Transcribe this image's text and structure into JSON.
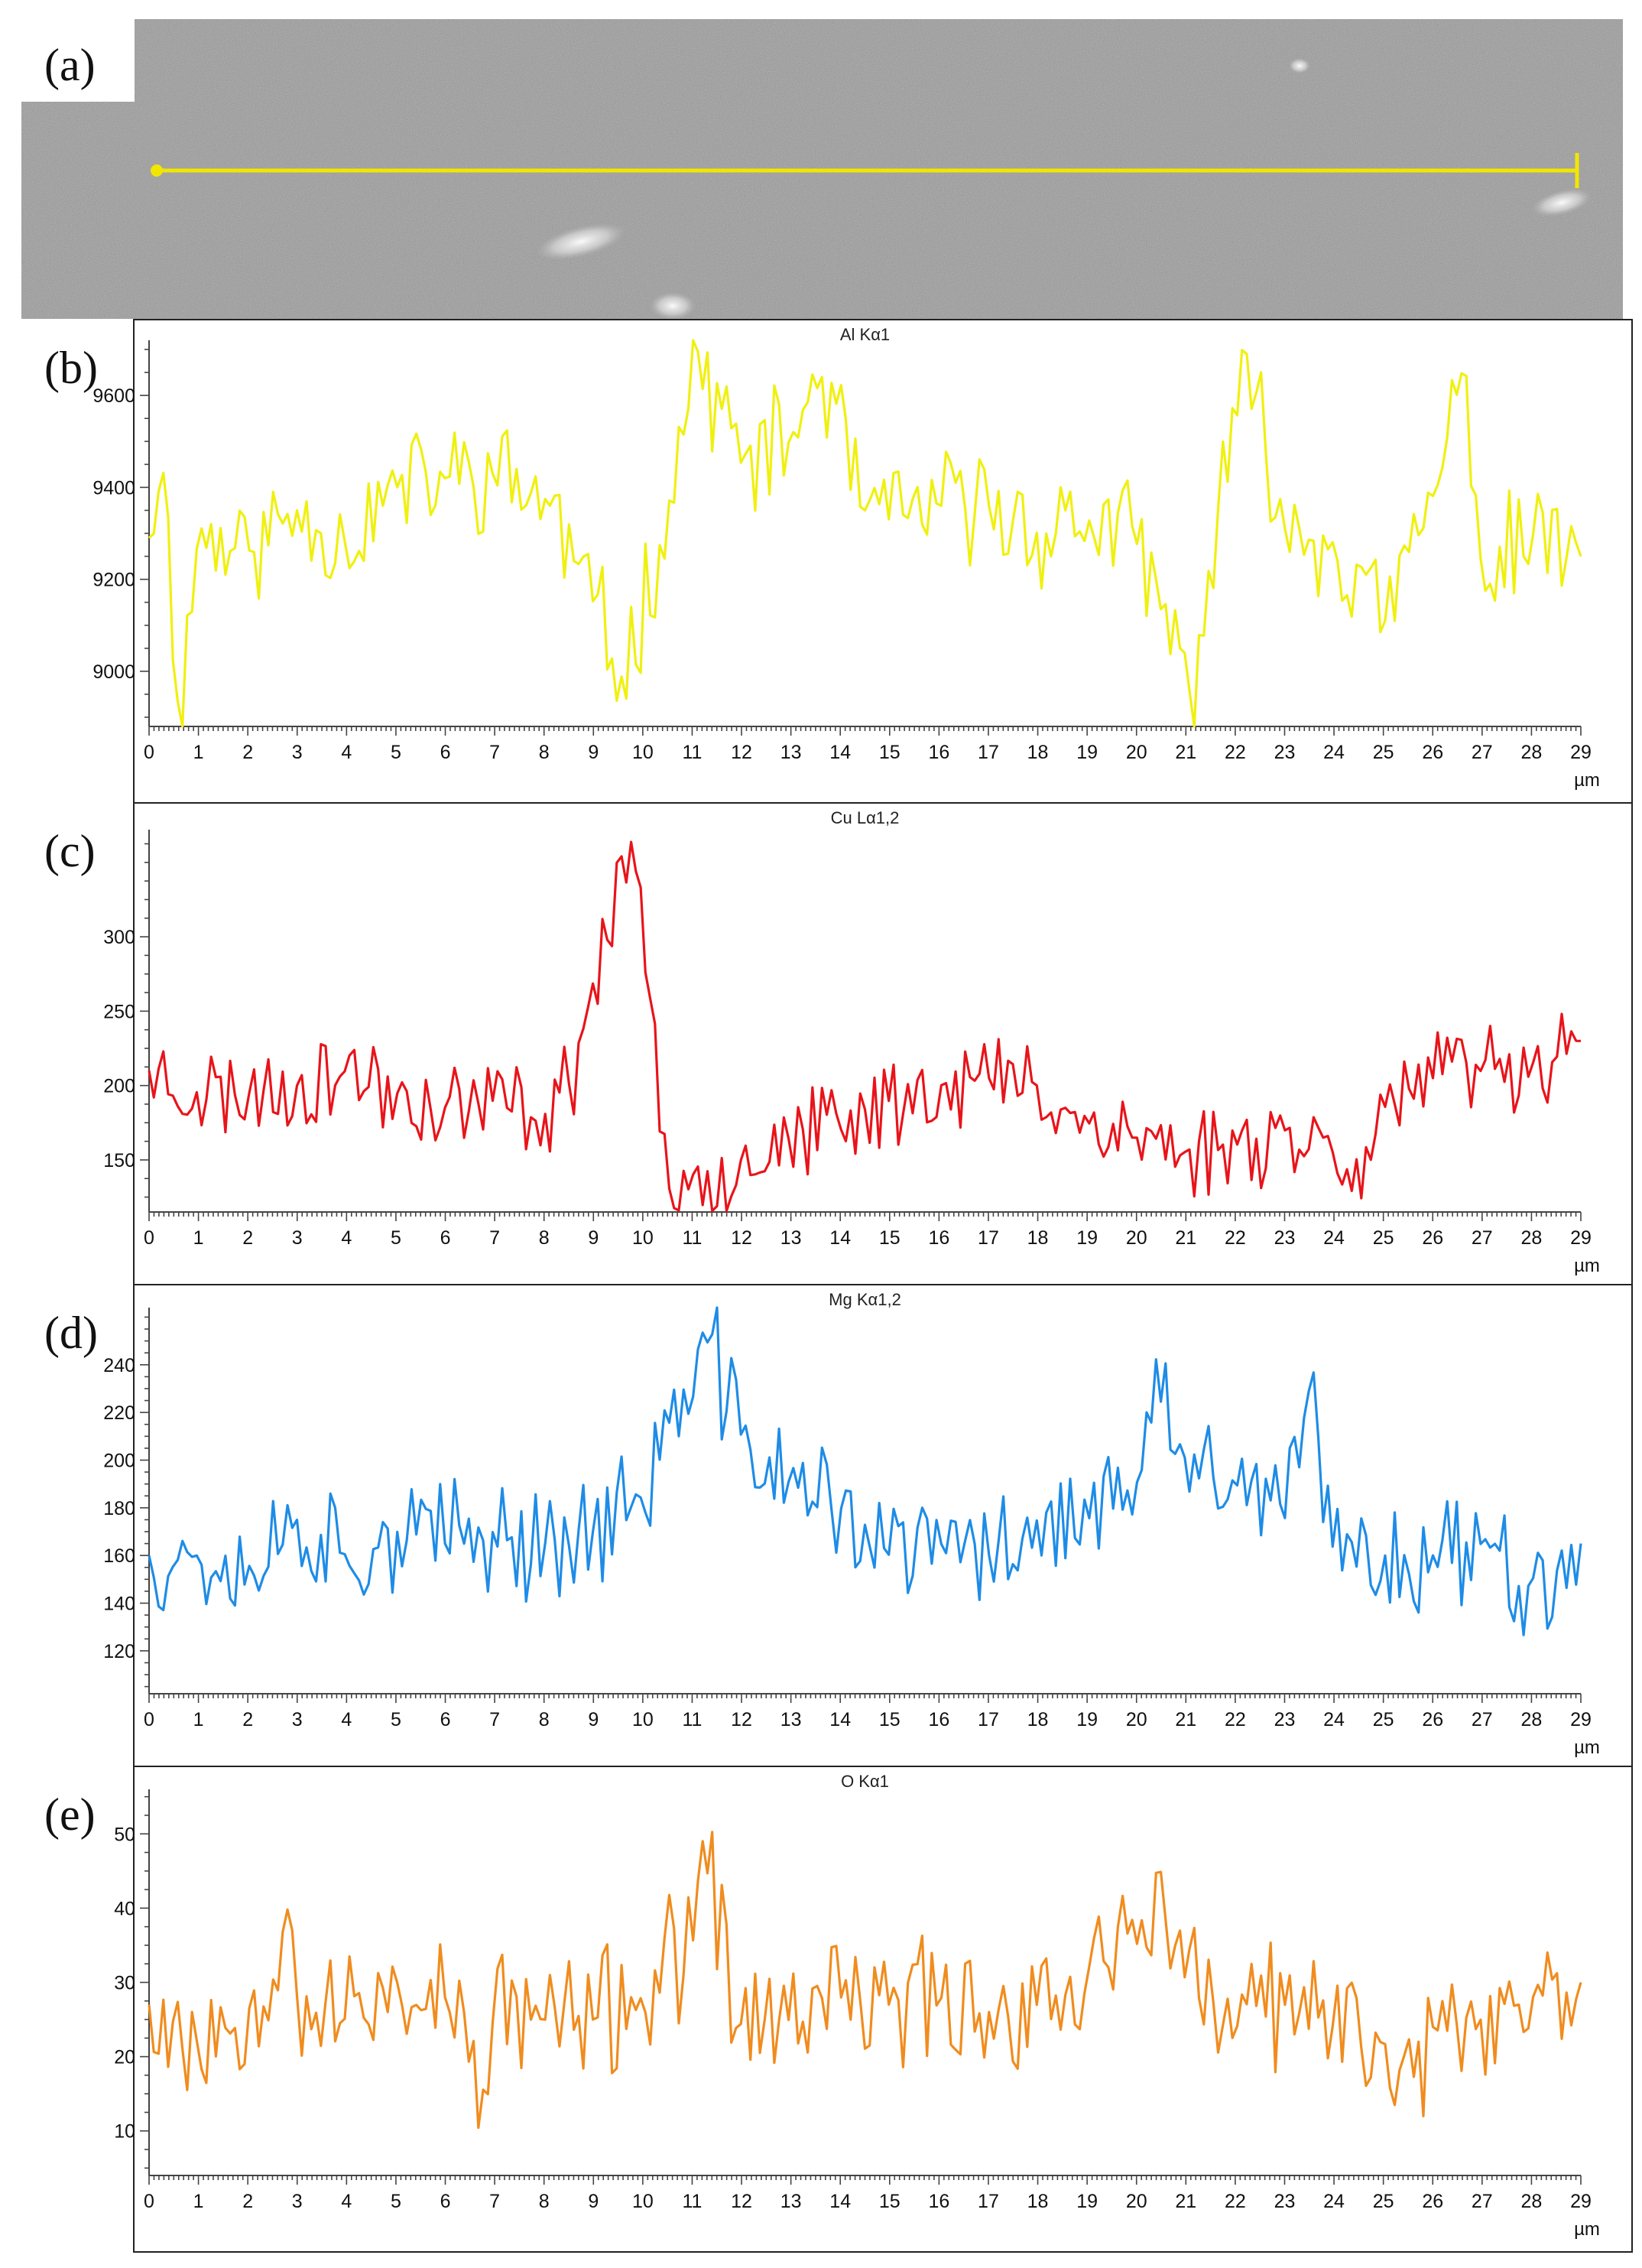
{
  "sem_image": {
    "label": "(a)",
    "line_color": "#f2e600"
  },
  "chart_data": [
    {
      "label": "(b)",
      "type": "line",
      "title": "Al Kα1",
      "color": "#f0f010",
      "xlabel": "µm",
      "xlim": [
        0,
        29
      ],
      "ylim": [
        8880,
        9720
      ],
      "yticks": [
        9000,
        9200,
        9400,
        9600
      ],
      "x_anchors": [
        0,
        0.25,
        0.6,
        1,
        2,
        3,
        4,
        5,
        6,
        7,
        8,
        9,
        9.6,
        10.5,
        11.1,
        12,
        13,
        13.6,
        14.5,
        15,
        16,
        17,
        18,
        19,
        20,
        21.1,
        22,
        22.4,
        23,
        24,
        25,
        26,
        26.7,
        27,
        28,
        29
      ],
      "y_anchors": [
        9290,
        9500,
        8900,
        9300,
        9260,
        9350,
        9280,
        9400,
        9420,
        9430,
        9380,
        9150,
        8980,
        9350,
        9700,
        9450,
        9500,
        9650,
        9350,
        9330,
        9360,
        9360,
        9300,
        9330,
        9280,
        8950,
        9550,
        9620,
        9310,
        9280,
        9100,
        9380,
        9650,
        9200,
        9300,
        9250
      ],
      "noise": 110,
      "seed": 11
    },
    {
      "label": "(c)",
      "type": "line",
      "title": "Cu Lα1,2",
      "color": "#e8141a",
      "xlabel": "µm",
      "xlim": [
        0,
        29
      ],
      "ylim": [
        115,
        372
      ],
      "yticks": [
        150,
        200,
        250,
        300
      ],
      "x_anchors": [
        0,
        1,
        2,
        3,
        4,
        5,
        6,
        7,
        8,
        8.5,
        9,
        9.3,
        9.6,
        10,
        10.3,
        10.5,
        11,
        12,
        13,
        14,
        15,
        16,
        17,
        18,
        19,
        20,
        21,
        22,
        23,
        24,
        24.5,
        25,
        26,
        27,
        28,
        29
      ],
      "y_anchors": [
        210,
        195,
        195,
        200,
        210,
        195,
        185,
        190,
        180,
        200,
        270,
        300,
        360,
        330,
        180,
        130,
        140,
        150,
        165,
        170,
        190,
        200,
        205,
        200,
        175,
        165,
        155,
        160,
        170,
        155,
        150,
        185,
        205,
        210,
        215,
        230
      ],
      "noise": 28,
      "seed": 23
    },
    {
      "label": "(d)",
      "type": "line",
      "title": "Mg Kα1,2",
      "color": "#1e8ce6",
      "xlabel": "µm",
      "xlim": [
        0,
        29
      ],
      "ylim": [
        102,
        264
      ],
      "yticks": [
        120,
        140,
        160,
        180,
        200,
        220,
        240
      ],
      "x_anchors": [
        0,
        1,
        2,
        3,
        4,
        5,
        6,
        7,
        8,
        9,
        10,
        10.5,
        11,
        11.3,
        12,
        13,
        14,
        15,
        16,
        17,
        18,
        19,
        20,
        20.5,
        21,
        22,
        23,
        23.5,
        24,
        25,
        26,
        27,
        28,
        29
      ],
      "y_anchors": [
        160,
        160,
        155,
        175,
        160,
        170,
        165,
        170,
        165,
        170,
        185,
        215,
        225,
        250,
        210,
        190,
        180,
        160,
        165,
        160,
        175,
        175,
        190,
        225,
        200,
        190,
        175,
        230,
        160,
        160,
        160,
        165,
        150,
        165
      ],
      "noise": 22,
      "seed": 37
    },
    {
      "label": "(e)",
      "type": "line",
      "title": "O Kα1",
      "color": "#f08c1e",
      "xlabel": "µm",
      "xlim": [
        0,
        29
      ],
      "ylim": [
        4,
        56
      ],
      "yticks": [
        10,
        20,
        30,
        40,
        50
      ],
      "x_anchors": [
        0,
        1,
        2,
        2.8,
        3,
        4,
        5,
        6,
        6.8,
        7,
        8,
        9,
        10,
        11,
        11.3,
        12,
        13,
        14,
        15,
        16,
        17,
        18,
        19,
        20,
        20.5,
        21,
        22,
        23,
        24,
        25,
        25.6,
        26,
        27,
        28,
        29
      ],
      "y_anchors": [
        27,
        22,
        26,
        40,
        28,
        25,
        30,
        28,
        15,
        27,
        25,
        25,
        28,
        35,
        45,
        24,
        25,
        28,
        27,
        28,
        26,
        27,
        32,
        35,
        45,
        30,
        24,
        27,
        24,
        22,
        17,
        24,
        25,
        28,
        30
      ],
      "noise": 8,
      "seed": 53
    }
  ]
}
